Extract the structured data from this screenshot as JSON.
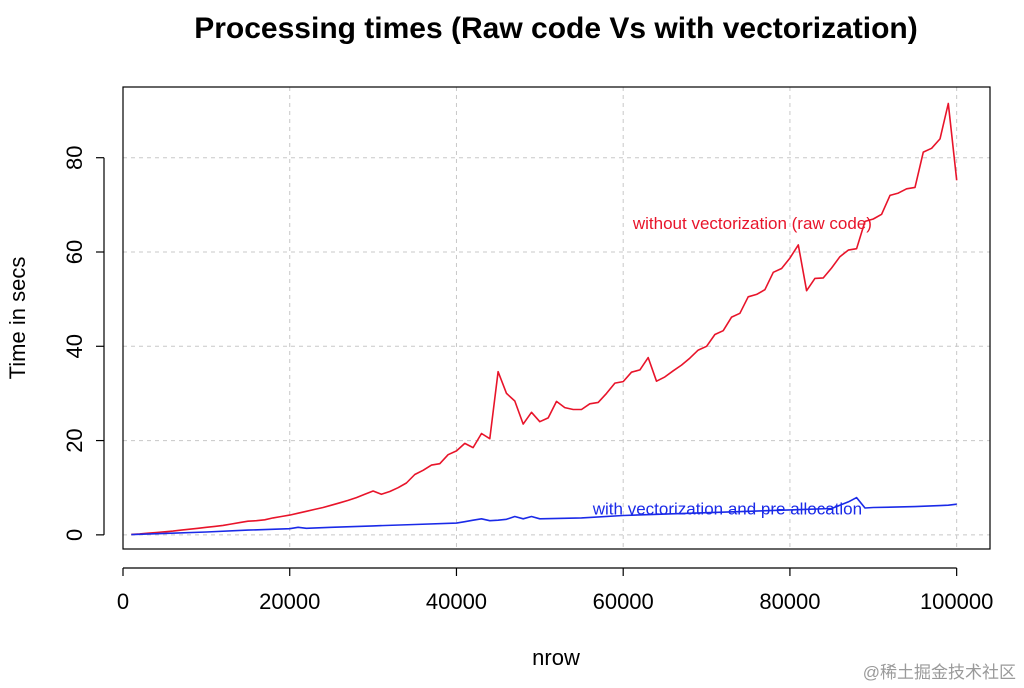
{
  "chart_data": {
    "type": "line",
    "title": "Processing times (Raw code Vs with vectorization)",
    "xlabel": "nrow",
    "ylabel": "Time in secs",
    "xlim": [
      0,
      104000
    ],
    "ylim": [
      -3,
      95
    ],
    "x_ticks": [
      0,
      20000,
      40000,
      60000,
      80000,
      100000
    ],
    "x_tick_labels": [
      "0",
      "20000",
      "40000",
      "60000",
      "80000",
      "100000"
    ],
    "y_ticks": [
      0,
      20,
      40,
      60,
      80
    ],
    "y_tick_labels": [
      "0",
      "20",
      "40",
      "60",
      "80"
    ],
    "grid": true,
    "series": [
      {
        "name": "without vectorization (raw code)",
        "color": "#e8142a",
        "x": [
          1000,
          2000,
          3000,
          4000,
          5000,
          6000,
          7000,
          8000,
          9000,
          10000,
          11000,
          12000,
          13000,
          14000,
          15000,
          16000,
          17000,
          18000,
          19000,
          20000,
          21000,
          22000,
          23000,
          24000,
          25000,
          26000,
          27000,
          28000,
          29000,
          30000,
          31000,
          32000,
          33000,
          34000,
          35000,
          36000,
          37000,
          38000,
          39000,
          40000,
          41000,
          42000,
          43000,
          44000,
          45000,
          46000,
          47000,
          48000,
          49000,
          50000,
          51000,
          52000,
          53000,
          54000,
          55000,
          56000,
          57000,
          58000,
          59000,
          60000,
          61000,
          62000,
          63000,
          64000,
          65000,
          66000,
          67000,
          68000,
          69000,
          70000,
          71000,
          72000,
          73000,
          74000,
          75000,
          76000,
          77000,
          78000,
          79000,
          80000,
          81000,
          82000,
          83000,
          84000,
          85000,
          86000,
          87000,
          88000,
          89000,
          90000,
          91000,
          92000,
          93000,
          94000,
          95000,
          96000,
          97000,
          98000,
          99000,
          100000
        ],
        "y": [
          0.1,
          0.2,
          0.35,
          0.5,
          0.65,
          0.8,
          1.0,
          1.2,
          1.4,
          1.6,
          1.8,
          2.0,
          2.3,
          2.6,
          2.9,
          3.0,
          3.2,
          3.6,
          3.9,
          4.2,
          4.6,
          5.0,
          5.4,
          5.8,
          6.3,
          6.8,
          7.3,
          7.9,
          8.6,
          9.3,
          8.6,
          9.2,
          10.0,
          11.0,
          12.8,
          13.7,
          14.8,
          15.1,
          17.0,
          17.8,
          19.4,
          18.5,
          21.5,
          20.4,
          34.6,
          30.0,
          28.4,
          23.5,
          26.0,
          24.0,
          24.8,
          28.3,
          27.0,
          26.6,
          26.6,
          27.8,
          28.1,
          30.0,
          32.2,
          32.5,
          34.5,
          35.0,
          37.6,
          32.6,
          33.5,
          34.8,
          36.0,
          37.5,
          39.2,
          40.0,
          42.5,
          43.3,
          46.2,
          47.0,
          50.5,
          51.0,
          52.0,
          55.7,
          56.5,
          58.7,
          61.5,
          51.8,
          54.4,
          54.5,
          56.6,
          59.0,
          60.4,
          60.7,
          66.5,
          67.0,
          68.0,
          72.0,
          72.5,
          73.4,
          73.7,
          81.2,
          82.0,
          84.0,
          91.5,
          75.2
        ]
      },
      {
        "name": "with vectorization and pre allocation",
        "color": "#1a2ae8",
        "x": [
          1000,
          5000,
          10000,
          15000,
          20000,
          21000,
          22000,
          25000,
          30000,
          35000,
          40000,
          41000,
          42000,
          43000,
          44000,
          45000,
          46000,
          47000,
          48000,
          49000,
          50000,
          55000,
          60000,
          65000,
          70000,
          75000,
          80000,
          85000,
          87000,
          88000,
          89000,
          90000,
          95000,
          98000,
          99000,
          100000
        ],
        "y": [
          0.05,
          0.3,
          0.6,
          1.0,
          1.3,
          1.6,
          1.4,
          1.6,
          1.9,
          2.2,
          2.5,
          2.8,
          3.1,
          3.4,
          3.0,
          3.1,
          3.3,
          3.9,
          3.4,
          3.9,
          3.4,
          3.6,
          4.1,
          4.4,
          4.7,
          5.0,
          5.3,
          5.6,
          7.0,
          7.9,
          5.7,
          5.8,
          6.0,
          6.2,
          6.3,
          6.5
        ]
      }
    ],
    "annotations": [
      {
        "text": "without vectorization (raw code)",
        "x": 75500,
        "y": 66.2,
        "color": "#e8142a"
      },
      {
        "text": "with vectorization and pre allocation",
        "x": 72500,
        "y": 5.6,
        "color": "#1a2ae8"
      }
    ]
  },
  "watermark": "@稀土掘金技术社区"
}
